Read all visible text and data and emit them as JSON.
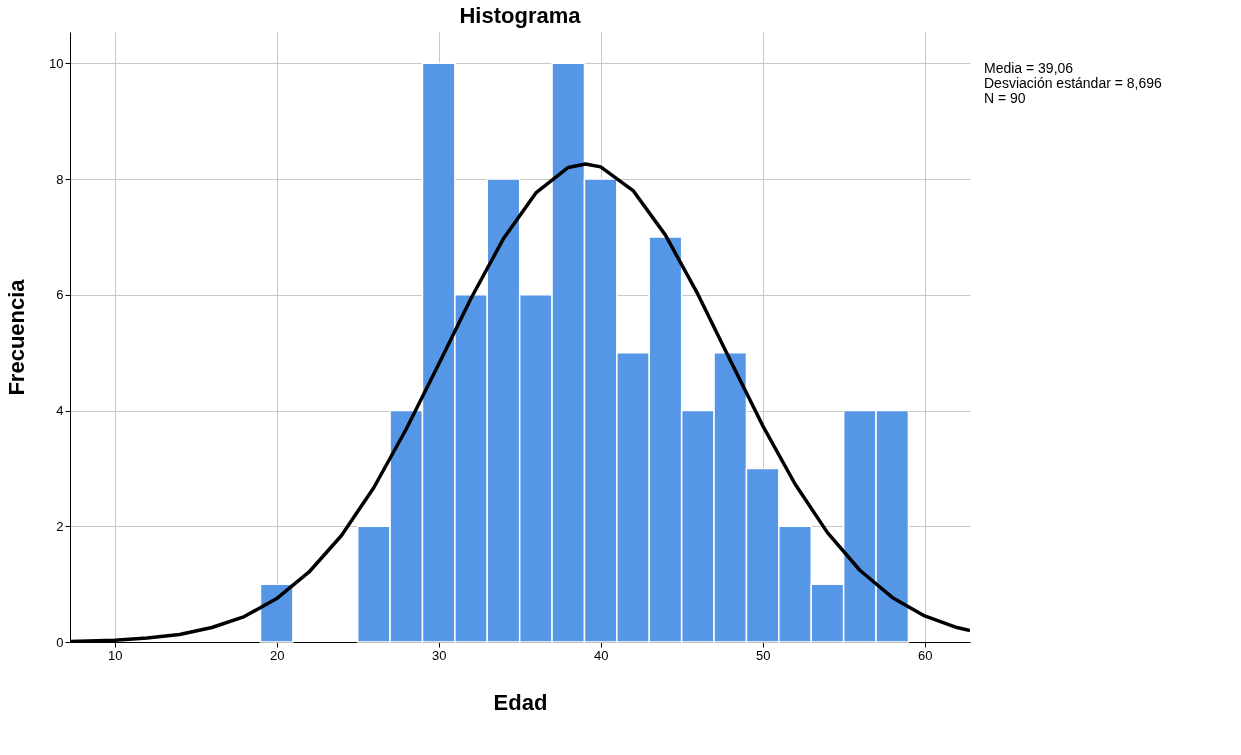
{
  "chart_data": {
    "type": "histogram",
    "title": "Histograma",
    "xlabel": "Edad",
    "ylabel": "Frecuencia",
    "bins": [
      19,
      21,
      23,
      25,
      27,
      29,
      31,
      33,
      35,
      37,
      39,
      41,
      43,
      45,
      47,
      49,
      51,
      53,
      55,
      57,
      59
    ],
    "values": [
      1,
      0,
      0,
      2,
      4,
      10,
      6,
      8,
      6,
      10,
      8,
      5,
      7,
      4,
      5,
      3,
      2,
      1,
      4,
      4
    ],
    "color": "#5596e6",
    "series": [
      {
        "type": "line",
        "color": "#000000",
        "x": [
          7.24,
          10,
          12,
          14,
          16,
          18,
          20,
          22,
          24,
          26,
          28,
          30,
          32,
          34,
          36,
          38,
          39.06,
          40,
          42,
          44,
          46,
          48,
          50,
          52,
          54,
          56,
          58,
          60,
          62,
          62.8
        ],
        "values": [
          0.01,
          0.03,
          0.07,
          0.13,
          0.25,
          0.44,
          0.75,
          1.21,
          1.84,
          2.67,
          3.68,
          4.8,
          5.94,
          6.97,
          7.76,
          8.2,
          8.26,
          8.21,
          7.8,
          7.03,
          6.01,
          4.87,
          3.74,
          2.73,
          1.89,
          1.24,
          0.77,
          0.45,
          0.25,
          0.2
        ]
      }
    ],
    "xlim": [
      7.24,
      62.8
    ],
    "xticks": [
      10,
      20,
      30,
      40,
      50,
      60
    ],
    "ylim": [
      0,
      10.54
    ],
    "yticks": [
      0,
      2,
      4,
      6,
      8,
      10
    ],
    "grid": true,
    "annotations": [
      "Media = 39,06",
      "Desviación estándar = 8,696",
      "N = 90"
    ]
  }
}
